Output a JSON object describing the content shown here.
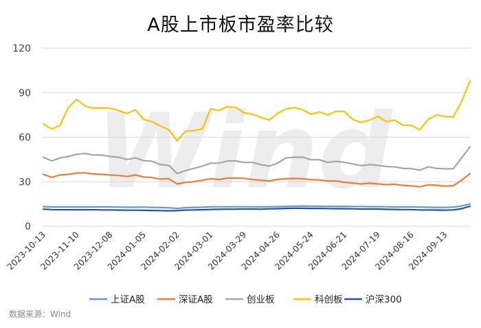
{
  "chart_data": {
    "type": "line",
    "title": "A股上市板市盈率比较",
    "xlabel": "",
    "ylabel": "",
    "ylim": [
      0,
      120
    ],
    "yticks": [
      "0",
      "30",
      "60",
      "90",
      "120"
    ],
    "x": [
      "2023-10-13",
      "2023-10-20",
      "2023-10-27",
      "2023-11-03",
      "2023-11-10",
      "2023-11-17",
      "2023-11-24",
      "2023-12-01",
      "2023-12-08",
      "2023-12-15",
      "2023-12-22",
      "2023-12-29",
      "2024-01-05",
      "2024-01-12",
      "2024-01-19",
      "2024-01-26",
      "2024-02-02",
      "2024-02-09",
      "2024-02-16",
      "2024-02-23",
      "2024-03-01",
      "2024-03-08",
      "2024-03-15",
      "2024-03-22",
      "2024-03-29",
      "2024-04-05",
      "2024-04-12",
      "2024-04-19",
      "2024-04-26",
      "2024-05-03",
      "2024-05-10",
      "2024-05-17",
      "2024-05-24",
      "2024-05-31",
      "2024-06-07",
      "2024-06-14",
      "2024-06-21",
      "2024-06-28",
      "2024-07-05",
      "2024-07-12",
      "2024-07-19",
      "2024-07-26",
      "2024-08-02",
      "2024-08-09",
      "2024-08-16",
      "2024-08-23",
      "2024-08-30",
      "2024-09-06",
      "2024-09-13",
      "2024-09-20",
      "2024-09-27",
      "2024-09-30"
    ],
    "xtick_labels": [
      "2023-10-13",
      "2023-11-10",
      "2023-12-08",
      "2024-01-05",
      "2024-02-02",
      "2024-03-01",
      "2024-03-29",
      "2024-04-26",
      "2024-05-24",
      "2024-06-21",
      "2024-07-19",
      "2024-08-16",
      "2024-09-13"
    ],
    "series": [
      {
        "name": "上证A股",
        "color": "#5b9bd5",
        "values": [
          13.2,
          13.0,
          13.0,
          13.0,
          13.0,
          13.0,
          13.0,
          13.0,
          13.0,
          12.9,
          12.8,
          12.8,
          12.9,
          12.7,
          12.6,
          12.4,
          12.0,
          12.5,
          12.7,
          12.8,
          13.1,
          13.1,
          13.1,
          13.1,
          13.1,
          13.1,
          13.0,
          13.1,
          13.2,
          13.4,
          13.5,
          13.6,
          13.5,
          13.5,
          13.4,
          13.4,
          13.4,
          13.3,
          13.3,
          13.2,
          13.2,
          13.1,
          13.0,
          13.0,
          13.0,
          12.9,
          12.8,
          12.7,
          12.7,
          12.9,
          13.6,
          15.0
        ]
      },
      {
        "name": "深证A股",
        "color": "#ed7d31",
        "values": [
          35.0,
          33.0,
          34.5,
          35.0,
          35.8,
          36.0,
          35.2,
          35.0,
          34.5,
          34.2,
          33.5,
          34.5,
          33.2,
          32.8,
          31.8,
          32.0,
          28.5,
          29.5,
          30.0,
          31.0,
          32.0,
          31.5,
          32.5,
          32.5,
          32.3,
          31.5,
          31.0,
          30.5,
          31.5,
          32.0,
          32.2,
          32.0,
          31.3,
          31.2,
          30.5,
          30.5,
          29.6,
          29.0,
          28.5,
          29.0,
          28.5,
          28.0,
          28.3,
          27.5,
          27.2,
          26.6,
          27.8,
          27.6,
          27.0,
          27.3,
          31.0,
          35.5
        ]
      },
      {
        "name": "创业板",
        "color": "#a5a5a5",
        "values": [
          46.5,
          44.0,
          46.0,
          47.0,
          48.5,
          49.0,
          48.0,
          48.0,
          47.0,
          46.5,
          45.0,
          46.0,
          44.2,
          43.8,
          41.5,
          41.0,
          35.5,
          37.5,
          39.0,
          40.5,
          42.5,
          42.5,
          44.0,
          44.0,
          43.0,
          43.0,
          41.5,
          40.5,
          42.5,
          46.0,
          46.5,
          46.5,
          44.8,
          44.8,
          43.0,
          43.8,
          43.0,
          42.0,
          40.8,
          41.5,
          41.0,
          40.2,
          40.0,
          39.0,
          38.8,
          37.8,
          40.0,
          39.0,
          38.7,
          38.7,
          46.0,
          53.5
        ]
      },
      {
        "name": "科创板",
        "color": "#ffc000",
        "values": [
          69.0,
          65.5,
          68.0,
          80.0,
          85.5,
          81.0,
          79.5,
          79.8,
          79.5,
          78.0,
          76.0,
          78.5,
          72.0,
          70.5,
          67.5,
          65.0,
          57.5,
          64.0,
          64.5,
          65.5,
          79.0,
          78.0,
          80.5,
          80.0,
          76.5,
          75.5,
          73.5,
          71.5,
          76.0,
          79.0,
          80.0,
          78.5,
          75.5,
          77.0,
          75.0,
          77.5,
          77.2,
          72.0,
          70.0,
          71.5,
          74.0,
          70.5,
          71.5,
          68.0,
          68.0,
          65.0,
          72.0,
          75.0,
          74.0,
          73.5,
          84.0,
          98.0
        ]
      },
      {
        "name": "沪深300",
        "color": "#264fa8",
        "values": [
          11.5,
          11.2,
          11.1,
          11.1,
          11.1,
          11.1,
          11.1,
          11.0,
          11.0,
          10.9,
          10.8,
          10.8,
          10.7,
          10.6,
          10.5,
          10.4,
          10.5,
          10.9,
          11.0,
          11.1,
          11.3,
          11.4,
          11.5,
          11.5,
          11.6,
          11.6,
          11.5,
          11.7,
          11.8,
          12.0,
          12.1,
          12.1,
          12.0,
          12.0,
          11.9,
          11.8,
          11.8,
          11.7,
          11.6,
          11.6,
          11.6,
          11.4,
          11.3,
          11.2,
          11.2,
          11.0,
          11.0,
          10.9,
          10.8,
          11.0,
          11.8,
          13.5
        ]
      }
    ],
    "legend_position": "bottom",
    "grid": "horizontal"
  },
  "watermark": "Wind",
  "source_text": "数据来源：Wind"
}
